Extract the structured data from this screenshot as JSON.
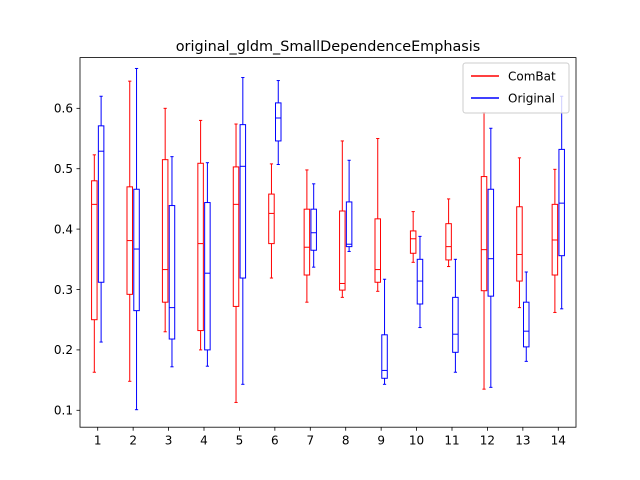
{
  "chart_data": {
    "type": "box",
    "title": "original_gldm_SmallDependenceEmphasis",
    "xlabel": "",
    "ylabel": "",
    "categories": [
      "1",
      "2",
      "3",
      "4",
      "5",
      "6",
      "7",
      "8",
      "9",
      "10",
      "11",
      "12",
      "13",
      "14"
    ],
    "yticks": [
      "0.1",
      "0.2",
      "0.3",
      "0.4",
      "0.5",
      "0.6"
    ],
    "ylim": [
      0.072,
      0.684
    ],
    "grid": false,
    "legend_position": "top-right",
    "series": [
      {
        "name": "ComBat",
        "color": "#ff0000",
        "boxes": [
          {
            "whisker_low": 0.163,
            "q1": 0.25,
            "median": 0.441,
            "q3": 0.48,
            "whisker_high": 0.523
          },
          {
            "whisker_low": 0.148,
            "q1": 0.292,
            "median": 0.381,
            "q3": 0.47,
            "whisker_high": 0.645
          },
          {
            "whisker_low": 0.23,
            "q1": 0.279,
            "median": 0.333,
            "q3": 0.515,
            "whisker_high": 0.6
          },
          {
            "whisker_low": 0.2,
            "q1": 0.232,
            "median": 0.376,
            "q3": 0.509,
            "whisker_high": 0.58
          },
          {
            "whisker_low": 0.113,
            "q1": 0.272,
            "median": 0.441,
            "q3": 0.503,
            "whisker_high": 0.574
          },
          {
            "whisker_low": 0.319,
            "q1": 0.376,
            "median": 0.426,
            "q3": 0.458,
            "whisker_high": 0.508
          },
          {
            "whisker_low": 0.279,
            "q1": 0.324,
            "median": 0.37,
            "q3": 0.433,
            "whisker_high": 0.498
          },
          {
            "whisker_low": 0.287,
            "q1": 0.299,
            "median": 0.31,
            "q3": 0.43,
            "whisker_high": 0.546
          },
          {
            "whisker_low": 0.297,
            "q1": 0.312,
            "median": 0.333,
            "q3": 0.417,
            "whisker_high": 0.55
          },
          {
            "whisker_low": 0.345,
            "q1": 0.36,
            "median": 0.384,
            "q3": 0.397,
            "whisker_high": 0.429
          },
          {
            "whisker_low": 0.338,
            "q1": 0.349,
            "median": 0.371,
            "q3": 0.409,
            "whisker_high": 0.45
          },
          {
            "whisker_low": 0.135,
            "q1": 0.298,
            "median": 0.366,
            "q3": 0.487,
            "whisker_high": 0.593
          },
          {
            "whisker_low": 0.27,
            "q1": 0.314,
            "median": 0.358,
            "q3": 0.437,
            "whisker_high": 0.518
          },
          {
            "whisker_low": 0.262,
            "q1": 0.324,
            "median": 0.382,
            "q3": 0.441,
            "whisker_high": 0.499
          }
        ]
      },
      {
        "name": "Original",
        "color": "#0000ff",
        "boxes": [
          {
            "whisker_low": 0.213,
            "q1": 0.312,
            "median": 0.529,
            "q3": 0.571,
            "whisker_high": 0.62
          },
          {
            "whisker_low": 0.101,
            "q1": 0.265,
            "median": 0.367,
            "q3": 0.466,
            "whisker_high": 0.666
          },
          {
            "whisker_low": 0.172,
            "q1": 0.218,
            "median": 0.27,
            "q3": 0.439,
            "whisker_high": 0.52
          },
          {
            "whisker_low": 0.173,
            "q1": 0.2,
            "median": 0.327,
            "q3": 0.444,
            "whisker_high": 0.51
          },
          {
            "whisker_low": 0.143,
            "q1": 0.319,
            "median": 0.504,
            "q3": 0.573,
            "whisker_high": 0.651
          },
          {
            "whisker_low": 0.507,
            "q1": 0.546,
            "median": 0.584,
            "q3": 0.609,
            "whisker_high": 0.646
          },
          {
            "whisker_low": 0.337,
            "q1": 0.365,
            "median": 0.394,
            "q3": 0.433,
            "whisker_high": 0.475
          },
          {
            "whisker_low": 0.363,
            "q1": 0.371,
            "median": 0.375,
            "q3": 0.445,
            "whisker_high": 0.514
          },
          {
            "whisker_low": 0.143,
            "q1": 0.153,
            "median": 0.166,
            "q3": 0.225,
            "whisker_high": 0.317
          },
          {
            "whisker_low": 0.237,
            "q1": 0.276,
            "median": 0.314,
            "q3": 0.35,
            "whisker_high": 0.388
          },
          {
            "whisker_low": 0.163,
            "q1": 0.196,
            "median": 0.226,
            "q3": 0.287,
            "whisker_high": 0.35
          },
          {
            "whisker_low": 0.138,
            "q1": 0.289,
            "median": 0.351,
            "q3": 0.466,
            "whisker_high": 0.567
          },
          {
            "whisker_low": 0.181,
            "q1": 0.205,
            "median": 0.231,
            "q3": 0.279,
            "whisker_high": 0.329
          },
          {
            "whisker_low": 0.268,
            "q1": 0.356,
            "median": 0.443,
            "q3": 0.532,
            "whisker_high": 0.62
          }
        ]
      }
    ]
  }
}
